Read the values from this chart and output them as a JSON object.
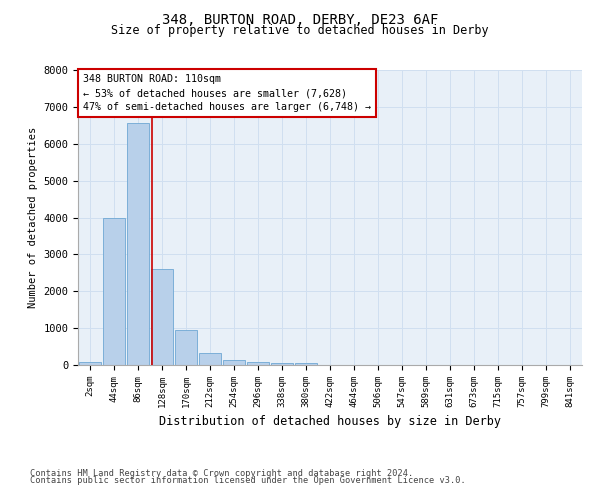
{
  "title_line1": "348, BURTON ROAD, DERBY, DE23 6AF",
  "title_line2": "Size of property relative to detached houses in Derby",
  "xlabel": "Distribution of detached houses by size in Derby",
  "ylabel": "Number of detached properties",
  "footnote1": "Contains HM Land Registry data © Crown copyright and database right 2024.",
  "footnote2": "Contains public sector information licensed under the Open Government Licence v3.0.",
  "bin_labels": [
    "2sqm",
    "44sqm",
    "86sqm",
    "128sqm",
    "170sqm",
    "212sqm",
    "254sqm",
    "296sqm",
    "338sqm",
    "380sqm",
    "422sqm",
    "464sqm",
    "506sqm",
    "547sqm",
    "589sqm",
    "631sqm",
    "673sqm",
    "715sqm",
    "757sqm",
    "799sqm",
    "841sqm"
  ],
  "bar_values": [
    70,
    3980,
    6560,
    2600,
    960,
    320,
    140,
    90,
    55,
    55,
    0,
    0,
    0,
    0,
    0,
    0,
    0,
    0,
    0,
    0,
    0
  ],
  "bar_color": "#b8d0ea",
  "bar_edge_color": "#6fa8d4",
  "grid_color": "#d0dff0",
  "background_color": "#e8f0f8",
  "annotation_line1": "348 BURTON ROAD: 110sqm",
  "annotation_line2": "← 53% of detached houses are smaller (7,628)",
  "annotation_line3": "47% of semi-detached houses are larger (6,748) →",
  "annotation_box_color": "#cc0000",
  "vline_position": 2.57,
  "vline_color": "#cc0000",
  "ylim": [
    0,
    8000
  ],
  "yticks": [
    0,
    1000,
    2000,
    3000,
    4000,
    5000,
    6000,
    7000,
    8000
  ]
}
